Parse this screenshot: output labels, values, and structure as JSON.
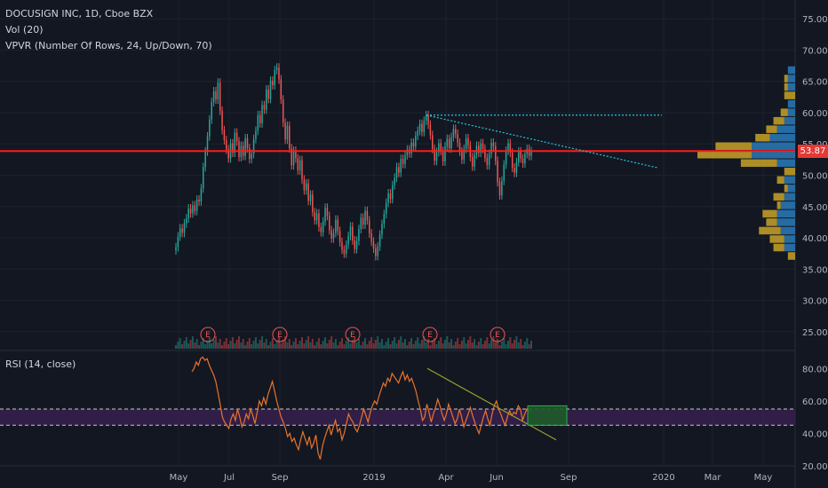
{
  "legend": {
    "symbol": "DOCUSIGN INC, 1D, Cboe BZX",
    "vol": "Vol (20)",
    "vpvr": "VPVR (Number Of Rows, 24, Up/Down, 70)",
    "rsi": "RSI (14, close)"
  },
  "last_price": "53.87",
  "colors": {
    "background": "#131722",
    "up": "#26a69a",
    "down": "#ef5350",
    "rsi_line": "#e8742a",
    "hline": "#ff1a1a",
    "trend_dotted": "#26c6da",
    "vpvr_up": "#2a7ab8",
    "vpvr_down": "#c9a227",
    "rsi_band": "#3b2154",
    "green_box": "#1e5a2a",
    "trend_rsi": "#9aa028"
  },
  "x_axis_labels": [
    "May",
    "Jul",
    "Sep",
    "2019",
    "Apr",
    "Jun",
    "Sep",
    "2020",
    "Mar",
    "May"
  ],
  "price_axis_labels": [
    "75.00",
    "70.00",
    "65.00",
    "60.00",
    "55.00",
    "50.00",
    "45.00",
    "40.00",
    "35.00",
    "30.00",
    "25.00"
  ],
  "rsi_axis_labels": [
    "80.00",
    "60.00",
    "40.00",
    "20.00"
  ],
  "earnings_marker": "E",
  "chart_data": {
    "type": "line",
    "price_ylim": [
      22,
      78
    ],
    "rsi_ylim": [
      20,
      90
    ],
    "horizontal_level": 53.87,
    "rsi_band": [
      45,
      55
    ],
    "closes": [
      38.5,
      40.2,
      41.5,
      40.8,
      42.3,
      43.1,
      44.7,
      43.9,
      45.2,
      44.3,
      46.1,
      45.8,
      47.9,
      51.3,
      53.8,
      56.2,
      58.9,
      61.7,
      63.4,
      62.1,
      64.8,
      60.3,
      57.2,
      55.6,
      54.1,
      52.7,
      55.1,
      53.6,
      56.8,
      55.4,
      52.9,
      54.7,
      53.1,
      55.9,
      54.3,
      52.6,
      53.4,
      55.8,
      57.1,
      59.6,
      58.3,
      61.2,
      60.5,
      63.7,
      62.2,
      65.1,
      64.4,
      66.8,
      67.2,
      65.3,
      62.1,
      58.4,
      55.7,
      57.9,
      54.3,
      51.6,
      53.9,
      52.7,
      50.8,
      52.4,
      49.3,
      47.6,
      48.7,
      45.9,
      46.9,
      44.1,
      42.8,
      43.9,
      41.7,
      40.9,
      42.6,
      44.8,
      43.5,
      41.2,
      39.9,
      40.8,
      42.9,
      41.1,
      39.3,
      38.1,
      37.5,
      38.9,
      40.3,
      41.8,
      39.6,
      38.2,
      39.5,
      41.4,
      43.2,
      42.1,
      44.3,
      42.8,
      40.7,
      39.4,
      38.3,
      37.1,
      38.6,
      40.5,
      42.2,
      43.8,
      45.6,
      47.1,
      46.2,
      48.4,
      49.6,
      51.3,
      50.4,
      52.6,
      51.8,
      53.2,
      54.1,
      53.5,
      55.2,
      54.6,
      56.3,
      57.1,
      58.2,
      56.9,
      58.7,
      59.6,
      58.1,
      56.4,
      54.2,
      52.3,
      53.7,
      55.1,
      53.9,
      52.2,
      54.6,
      55.8,
      54.3,
      56.1,
      57.4,
      56.6,
      55.2,
      53.8,
      52.5,
      54.2,
      55.9,
      54.8,
      52.9,
      51.4,
      53.3,
      54.7,
      53.6,
      55.1,
      54.2,
      52.8,
      51.6,
      53.4,
      55.2,
      54.6,
      52.3,
      48.9,
      46.8,
      49.1,
      51.7,
      53.9,
      55.1,
      53.6,
      51.2,
      50.4,
      52.1,
      53.8,
      52.7,
      51.9,
      53.4,
      54.2,
      53.1,
      53.87
    ],
    "rsi": [
      78,
      80,
      84,
      82,
      86,
      87,
      85,
      86,
      82,
      79,
      76,
      72,
      65,
      58,
      50,
      47,
      45,
      43,
      49,
      52,
      48,
      55,
      50,
      44,
      47,
      52,
      49,
      55,
      51,
      46,
      53,
      60,
      57,
      62,
      58,
      64,
      68,
      72,
      66,
      60,
      55,
      50,
      47,
      43,
      38,
      40,
      35,
      37,
      33,
      30,
      36,
      41,
      37,
      33,
      38,
      31,
      34,
      39,
      28,
      24,
      32,
      37,
      41,
      45,
      39,
      44,
      48,
      41,
      43,
      36,
      40,
      46,
      52,
      49,
      47,
      43,
      41,
      45,
      50,
      55,
      51,
      47,
      53,
      57,
      60,
      58,
      63,
      67,
      71,
      69,
      74,
      72,
      77,
      75,
      73,
      71,
      75,
      78,
      73,
      76,
      72,
      74,
      70,
      66,
      60,
      55,
      48,
      50,
      58,
      53,
      47,
      52,
      56,
      61,
      57,
      52,
      48,
      52,
      58,
      54,
      50,
      46,
      49,
      55,
      50,
      44,
      48,
      52,
      56,
      51,
      47,
      43,
      40,
      45,
      50,
      54,
      49,
      45,
      52,
      57,
      60,
      55,
      52,
      48,
      45,
      50,
      54,
      51,
      53,
      52,
      57,
      55,
      48,
      52,
      55,
      53,
      54
    ]
  }
}
